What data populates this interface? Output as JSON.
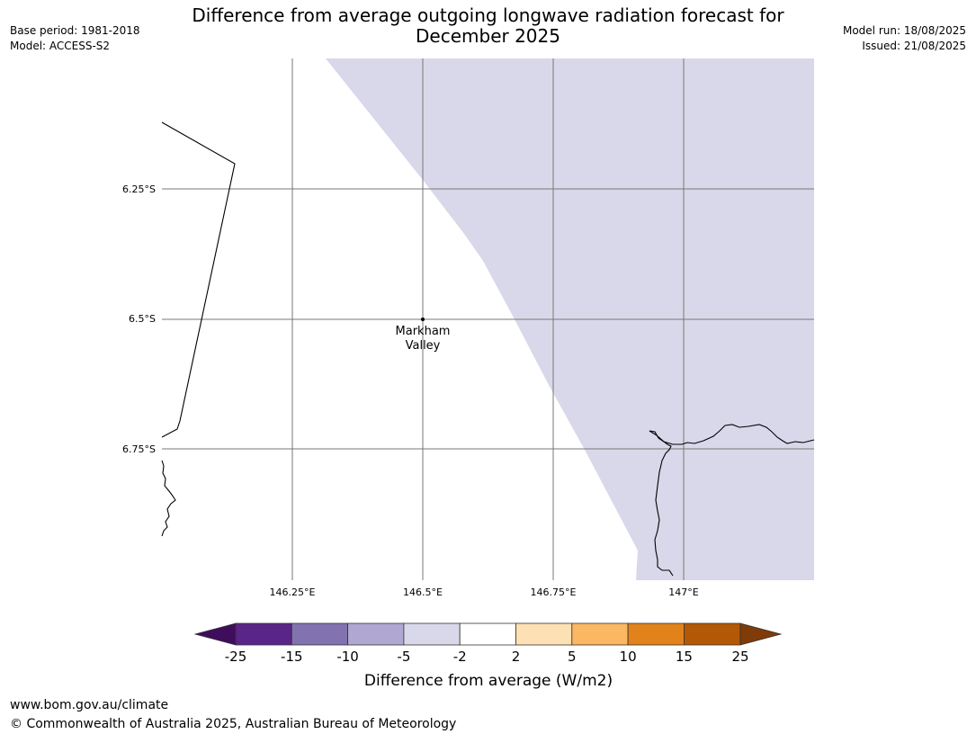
{
  "title_line1": "Difference from average outgoing longwave radiation forecast for",
  "title_line2": "December 2025",
  "base_period": "Base period: 1981-2018",
  "model": "Model: ACCESS-S2",
  "model_run": "Model run: 18/08/2025",
  "issued": "Issued: 21/08/2025",
  "map": {
    "lat_labels": [
      "6.25°S",
      "6.5°S",
      "6.75°S"
    ],
    "lon_labels": [
      "146.25°E",
      "146.5°E",
      "146.75°E",
      "147°E"
    ],
    "location": {
      "name_line1": "Markham",
      "name_line2": "Valley",
      "lat": -6.5,
      "lon": 146.5
    },
    "shaded_category": "-5 to -2",
    "shaded_color": "#d8d8ea"
  },
  "legend": {
    "label": "Difference from average (W/m2)",
    "ticks": [
      "-25",
      "-15",
      "-10",
      "-5",
      "-2",
      "2",
      "5",
      "10",
      "15",
      "25"
    ],
    "colors": [
      "#3f0d5c",
      "#5a2488",
      "#8273b0",
      "#b0a8d2",
      "#d8d8ea",
      "#ffffff",
      "#fde0b4",
      "#fbb762",
      "#e1821a",
      "#b35806",
      "#7f3b08"
    ]
  },
  "footer_url": "www.bom.gov.au/climate",
  "footer_copyright": "© Commonwealth of Australia 2025, Australian Bureau of Meteorology"
}
